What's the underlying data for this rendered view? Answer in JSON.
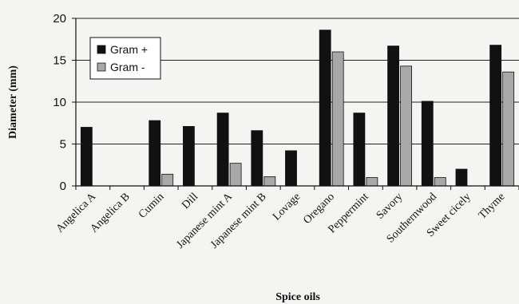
{
  "chart_data": {
    "type": "bar",
    "title": "",
    "xlabel": "Spice oils",
    "ylabel": "Diameter (mm)",
    "ylim": [
      0,
      20
    ],
    "yticks": [
      0,
      5,
      10,
      15,
      20
    ],
    "grid": true,
    "legend_position": "top-left",
    "categories": [
      "Angelica A",
      "Angelica B",
      "Cumin",
      "Dill",
      "Japanese mint A",
      "Japanese mint B",
      "Lovage",
      "Oregano",
      "Peppermint",
      "Savory",
      "Southernwood",
      "Sweet cicely",
      "Thyme"
    ],
    "series": [
      {
        "name": "Gram +",
        "color": "#111111",
        "values": [
          7.0,
          0,
          7.8,
          7.1,
          8.7,
          6.6,
          4.2,
          18.6,
          8.7,
          16.7,
          10.1,
          2.0,
          16.8
        ]
      },
      {
        "name": "Gram -",
        "color": "#a8a8a8",
        "values": [
          0,
          0,
          1.4,
          0,
          2.7,
          1.1,
          0,
          16.0,
          1.0,
          14.3,
          1.0,
          0,
          13.6
        ]
      }
    ]
  }
}
